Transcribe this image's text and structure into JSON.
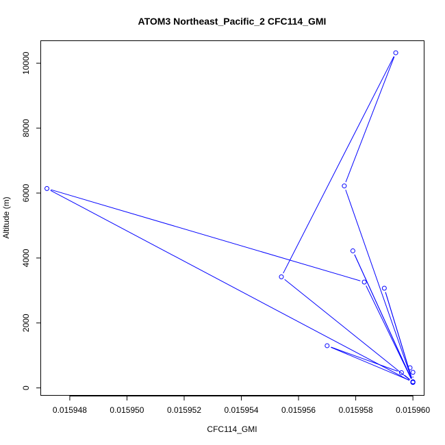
{
  "chart_data": {
    "type": "line",
    "title": "ATOM3 Northeast_Pacific_2 CFC114_GMI",
    "xlabel": "CFC114_GMI",
    "ylabel": "Altitude (m)",
    "xlim": [
      0.015946996,
      0.015960404
    ],
    "ylim": [
      -240,
      10680
    ],
    "xticks": [
      0.015948,
      0.01595,
      0.015952,
      0.015954,
      0.015956,
      0.015958,
      0.01596
    ],
    "xtick_labels": [
      "0.015948",
      "0.015950",
      "0.015952",
      "0.015954",
      "0.015956",
      "0.015958",
      "0.015960"
    ],
    "yticks": [
      0,
      2000,
      4000,
      6000,
      8000,
      10000
    ],
    "ytick_labels": [
      "0",
      "2000",
      "4000",
      "6000",
      "8000",
      "10000"
    ],
    "grid": false,
    "color": "#0000ff",
    "series": [
      {
        "markers": "open-circle",
        "x": [
          0.0159599,
          0.01596,
          0.01596,
          0.015957,
          0.0159596,
          0.01596,
          0.015959,
          0.01596,
          0.0159579,
          0.01596,
          0.0159554,
          0.0159594,
          0.0159576,
          0.01596,
          0.0159583,
          0.0159472,
          0.01596
        ],
        "y": [
          620,
          480,
          190,
          1300,
          470,
          180,
          3070,
          170,
          4220,
          170,
          3420,
          10320,
          6220,
          170,
          3260,
          6140,
          170
        ]
      }
    ]
  }
}
